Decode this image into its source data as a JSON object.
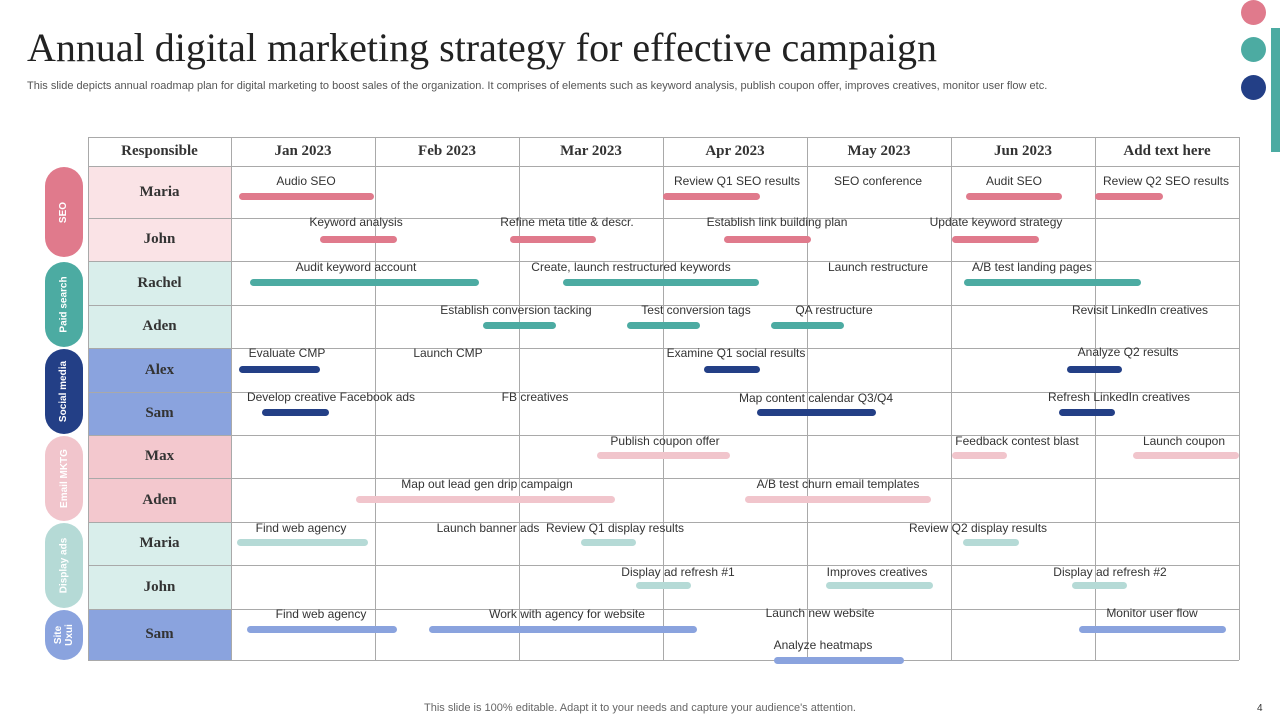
{
  "title": "Annual digital marketing strategy for effective campaign",
  "subtitle": "This slide depicts annual roadmap plan for digital marketing to boost sales of the organization. It comprises of elements such as keyword analysis, publish coupon offer, improves creatives, monitor user flow etc.",
  "colors": {
    "pink_dark": "#e07a8c",
    "teal": "#4caba2",
    "navy": "#233f86",
    "pink_light": "#f1c5cc",
    "mint": "#b5dad6",
    "blue": "#8aa3de"
  },
  "table": {
    "responsible_header": "Responsible",
    "months": [
      "Jan 2023",
      "Feb 2023",
      "Mar 2023",
      "Apr 2023",
      "May 2023",
      "Jun 2023",
      "Add text here"
    ]
  },
  "categories": [
    {
      "label": "SEO",
      "color": "#e07a8c"
    },
    {
      "label": "Paid search",
      "color": "#4caba2"
    },
    {
      "label": "Social media",
      "color": "#233f86"
    },
    {
      "label": "Email MKTG",
      "color": "#f1c5cc"
    },
    {
      "label": "Display ads",
      "color": "#b5dad6"
    },
    {
      "label": "Site Uxui",
      "color": "#8aa3de"
    }
  ],
  "people": [
    {
      "name": "Maria",
      "color": "#fae3e6"
    },
    {
      "name": "John",
      "color": "#fae3e6"
    },
    {
      "name": "Rachel",
      "color": "#d9eeeb"
    },
    {
      "name": "Aden",
      "color": "#d9eeeb"
    },
    {
      "name": "Alex",
      "color": "#8aa3de"
    },
    {
      "name": "Sam",
      "color": "#8aa3de"
    },
    {
      "name": "Max",
      "color": "#f3c8ce"
    },
    {
      "name": "Aden",
      "color": "#f3c8ce"
    },
    {
      "name": "Maria",
      "color": "#d9eeeb"
    },
    {
      "name": "John",
      "color": "#d9eeeb"
    },
    {
      "name": "Sam",
      "color": "#8aa3de"
    }
  ],
  "tasks": [
    {
      "label": "Audio SEO"
    },
    {
      "label": "Review Q1 SEO results"
    },
    {
      "label": "SEO conference"
    },
    {
      "label": "Audit SEO"
    },
    {
      "label": "Review Q2 SEO results"
    },
    {
      "label": "Keyword analysis"
    },
    {
      "label": "Refine meta title & descr."
    },
    {
      "label": "Establish link building plan"
    },
    {
      "label": "Update keyword strategy"
    },
    {
      "label": "Audit keyword account"
    },
    {
      "label": "Create, launch restructured keywords"
    },
    {
      "label": "Launch restructure"
    },
    {
      "label": "A/B test landing pages"
    },
    {
      "label": "Establish conversion tacking"
    },
    {
      "label": "Test conversion tags"
    },
    {
      "label": "QA restructure"
    },
    {
      "label": "Revisit LinkedIn creatives"
    },
    {
      "label": "Evaluate CMP"
    },
    {
      "label": "Launch CMP"
    },
    {
      "label": "Examine Q1 social results"
    },
    {
      "label": "Analyze Q2 results"
    },
    {
      "label": "Develop creative Facebook ads"
    },
    {
      "label": "FB creatives"
    },
    {
      "label": "Map content calendar Q3/Q4"
    },
    {
      "label": "Refresh LinkedIn creatives"
    },
    {
      "label": "Publish coupon offer"
    },
    {
      "label": "Feedback contest blast"
    },
    {
      "label": "Launch coupon"
    },
    {
      "label": "Map out lead gen drip campaign"
    },
    {
      "label": "A/B test churn email templates"
    },
    {
      "label": "Find web agency"
    },
    {
      "label": "Launch banner ads"
    },
    {
      "label": "Review Q1 display results"
    },
    {
      "label": "Review Q2 display results"
    },
    {
      "label": "Display ad refresh #1"
    },
    {
      "label": "Improves creatives"
    },
    {
      "label": "Display ad refresh #2"
    },
    {
      "label": "Find web agency"
    },
    {
      "label": "Work with agency for website"
    },
    {
      "label": "Launch new website"
    },
    {
      "label": "Monitor user flow"
    },
    {
      "label": "Analyze heatmaps"
    }
  ],
  "footer": "This slide is 100% editable. Adapt it to your needs and capture your audience's attention.",
  "page_number": "4"
}
